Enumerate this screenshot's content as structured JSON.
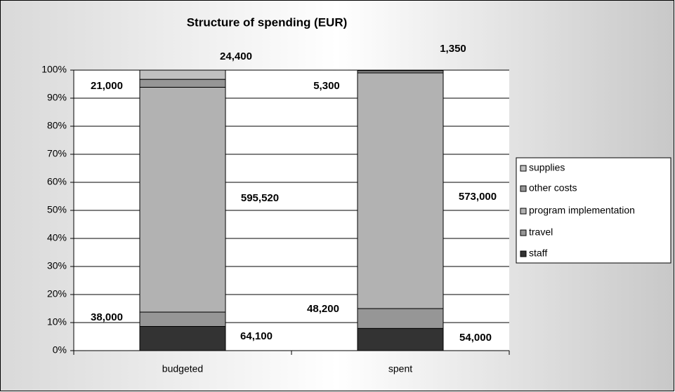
{
  "chart_data": {
    "type": "stacked_bar_100",
    "title": "Structure of spending (EUR)",
    "categories": [
      "budgeted",
      "spent"
    ],
    "series": [
      {
        "name": "staff",
        "color": "#333333",
        "values": [
          64100,
          54000
        ],
        "value_labels": [
          "64,100",
          "54,000"
        ]
      },
      {
        "name": "travel",
        "color": "#969696",
        "values": [
          38000,
          48200
        ],
        "value_labels": [
          "38,000",
          "48,200"
        ]
      },
      {
        "name": "program implementation",
        "color": "#b2b2b2",
        "values": [
          595520,
          573000
        ],
        "value_labels": [
          "595,520",
          "573,000"
        ]
      },
      {
        "name": "other costs",
        "color": "#969696",
        "values": [
          21000,
          5300
        ],
        "value_labels": [
          "21,000",
          "5,300"
        ]
      },
      {
        "name": "supplies",
        "color": "#c0c0c0",
        "values": [
          24400,
          1350
        ],
        "value_labels": [
          "24,400",
          "1,350"
        ]
      }
    ],
    "ylim": [
      0,
      100
    ],
    "yticks": [
      {
        "value": 0,
        "label": "0%"
      },
      {
        "value": 10,
        "label": "10%"
      },
      {
        "value": 20,
        "label": "20%"
      },
      {
        "value": 30,
        "label": "30%"
      },
      {
        "value": 40,
        "label": "40%"
      },
      {
        "value": 50,
        "label": "50%"
      },
      {
        "value": 60,
        "label": "60%"
      },
      {
        "value": 70,
        "label": "70%"
      },
      {
        "value": 80,
        "label": "80%"
      },
      {
        "value": 90,
        "label": "90%"
      },
      {
        "value": 100,
        "label": "100%"
      }
    ],
    "grid": true,
    "legend": "right"
  }
}
